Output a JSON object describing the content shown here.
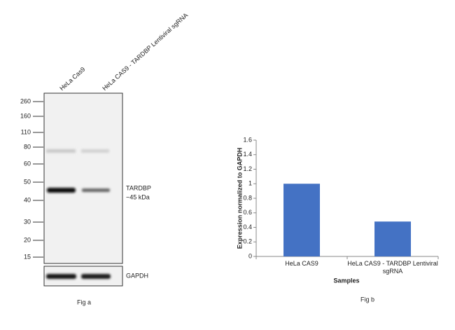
{
  "figure_a": {
    "lane_labels": [
      "HeLa Cas9",
      "HeLa CAS9 - TARDBP Lentiviral sgRNA"
    ],
    "markers": [
      260,
      160,
      110,
      80,
      60,
      50,
      40,
      30,
      20,
      15
    ],
    "band_labels": [
      "TARDBP",
      "~45 kDa"
    ],
    "loading_label": "GAPDH",
    "caption": "Fig a"
  },
  "chart_data": {
    "type": "bar",
    "ylabel": "Expression normalized to GAPDH",
    "xlabel": "Samples",
    "caption": "Fig b",
    "categories": [
      "HeLa CAS9",
      "HeLa CAS9 - TARDBP Lentiviral sgRNA"
    ],
    "values": [
      1,
      0.48
    ],
    "color": "#4472c4",
    "ylim": [
      0,
      1.6
    ],
    "yticks": [
      0,
      0.2,
      0.4,
      0.6,
      0.8,
      1,
      1.2,
      1.4,
      1.6
    ]
  }
}
